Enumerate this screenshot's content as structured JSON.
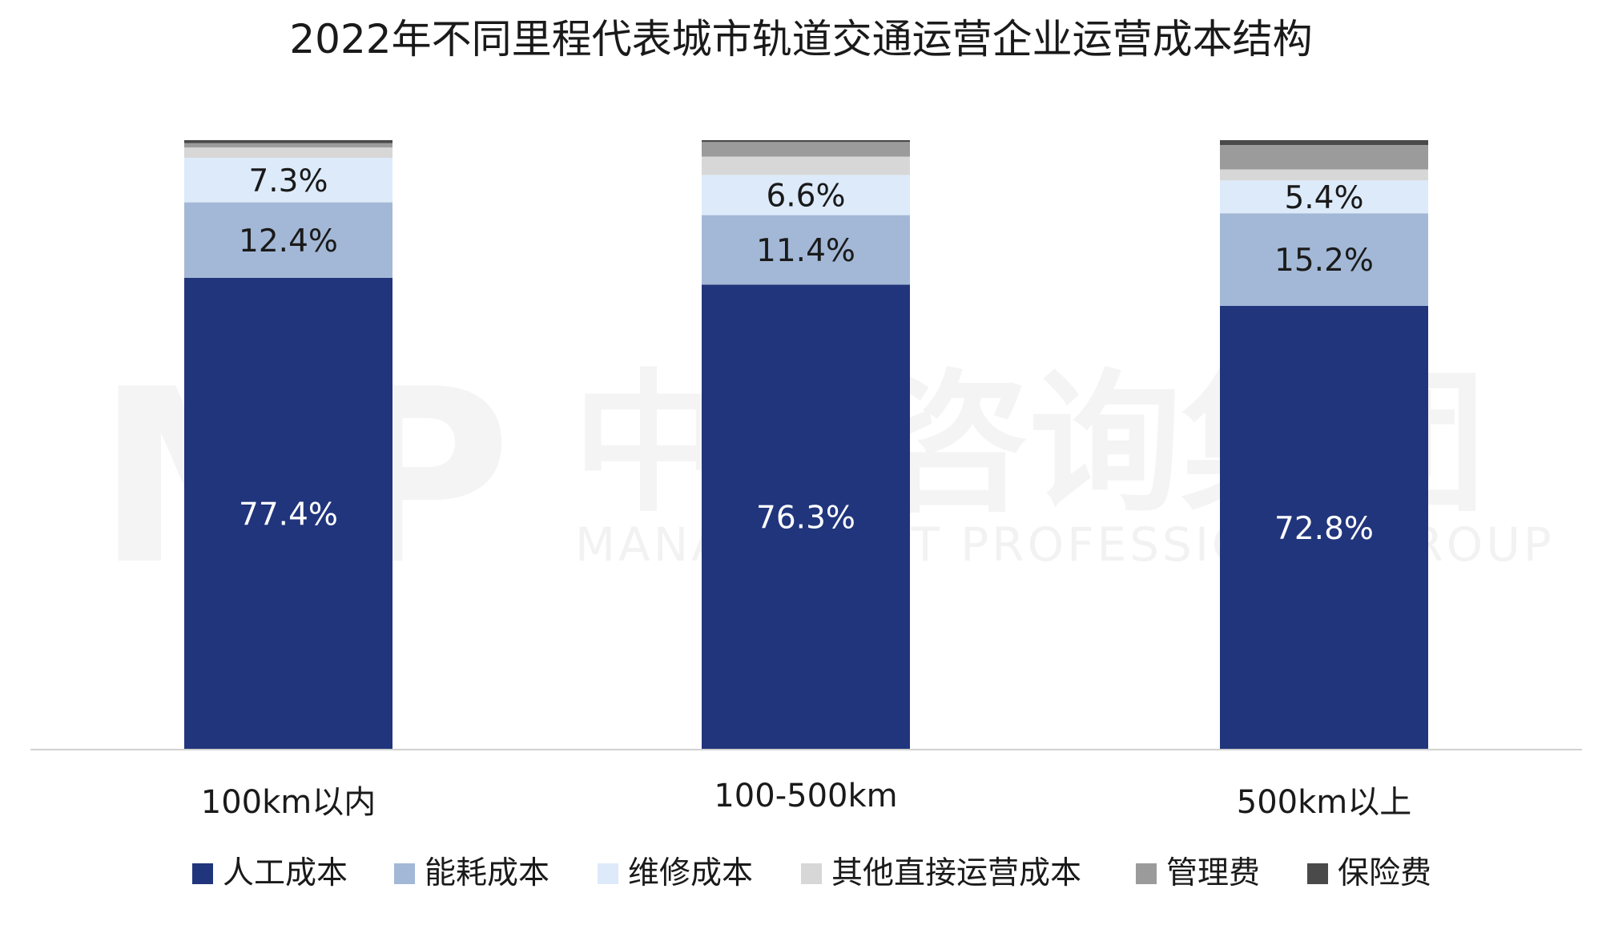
{
  "chart_data": {
    "type": "bar",
    "stacked": true,
    "title": "2022年不同里程代表城市轨道交通运营企业运营成本结构",
    "categories": [
      "100km以内",
      "100-500km",
      "500km以上"
    ],
    "ylim": [
      0,
      100
    ],
    "grid": false,
    "legend_position": "bottom",
    "series": [
      {
        "name": "人工成本",
        "color": "#21357c",
        "label_color": "#ffffff",
        "values": [
          77.4,
          76.3,
          72.8
        ],
        "labels": [
          "77.4%",
          "76.3%",
          "72.8%"
        ]
      },
      {
        "name": "能耗成本",
        "color": "#a3b8d6",
        "label_color": "#1a1a1a",
        "values": [
          12.4,
          11.4,
          15.2
        ],
        "labels": [
          "12.4%",
          "11.4%",
          "15.2%"
        ]
      },
      {
        "name": "维修成本",
        "color": "#ddeafa",
        "label_color": "#1a1a1a",
        "values": [
          7.3,
          6.6,
          5.4
        ],
        "labels": [
          "7.3%",
          "6.6%",
          "5.4%"
        ]
      },
      {
        "name": "其他直接运营成本",
        "color": "#d7d7d7",
        "label_color": "#1a1a1a",
        "values": [
          1.7,
          3.0,
          1.8
        ],
        "labels": [
          "",
          "",
          ""
        ]
      },
      {
        "name": "管理费",
        "color": "#9b9b9b",
        "label_color": "#1a1a1a",
        "values": [
          0.7,
          2.4,
          4.0
        ],
        "labels": [
          "",
          "",
          ""
        ]
      },
      {
        "name": "保险费",
        "color": "#4a4a4a",
        "label_color": "#1a1a1a",
        "values": [
          0.5,
          0.3,
          0.8
        ],
        "labels": [
          "",
          "",
          ""
        ]
      }
    ]
  },
  "watermark": {
    "logo": "MP",
    "name": "中大咨询集团",
    "subtitle": "MANAGEMENT PROFESSIONAL GROUP"
  }
}
